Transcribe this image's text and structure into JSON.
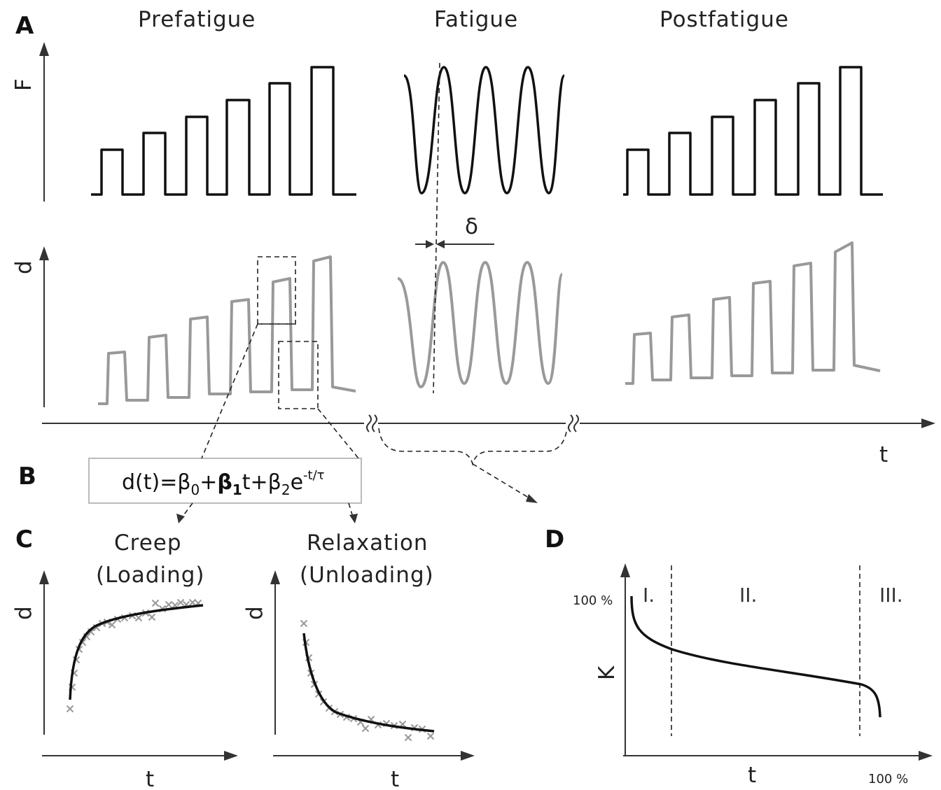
{
  "panels": {
    "a": "A",
    "b": "B",
    "c": "C",
    "d": "D"
  },
  "sections": {
    "prefatigue": "Prefatigue",
    "fatigue": "Fatigue",
    "postfatigue": "Postfatigue"
  },
  "axes": {
    "force": "F",
    "displacement": "d",
    "time": "t",
    "stiffness": "K"
  },
  "delta_symbol": "δ",
  "equation": {
    "lhs": "d(t)=β",
    "sub0": "0",
    "plus1": "+",
    "beta1": "β",
    "sub1": "1",
    "t_plus": "t+β",
    "sub2": "2",
    "exp_e": "e",
    "exponent": "-t/τ"
  },
  "panel_c": {
    "creep_title": "Creep",
    "creep_subtitle": "(Loading)",
    "relax_title": "Relaxation",
    "relax_subtitle": "(Unloading)"
  },
  "panel_d": {
    "phase1": "I.",
    "phase2": "II.",
    "phase3": "III.",
    "k_max_label": "100 %",
    "t_max_label": "100 %"
  },
  "colors": {
    "force_trace": "#111111",
    "displacement_trace": "#999999",
    "markers": "#999999"
  },
  "icons": {
    "axis_break": "double-slash-break-icon"
  }
}
